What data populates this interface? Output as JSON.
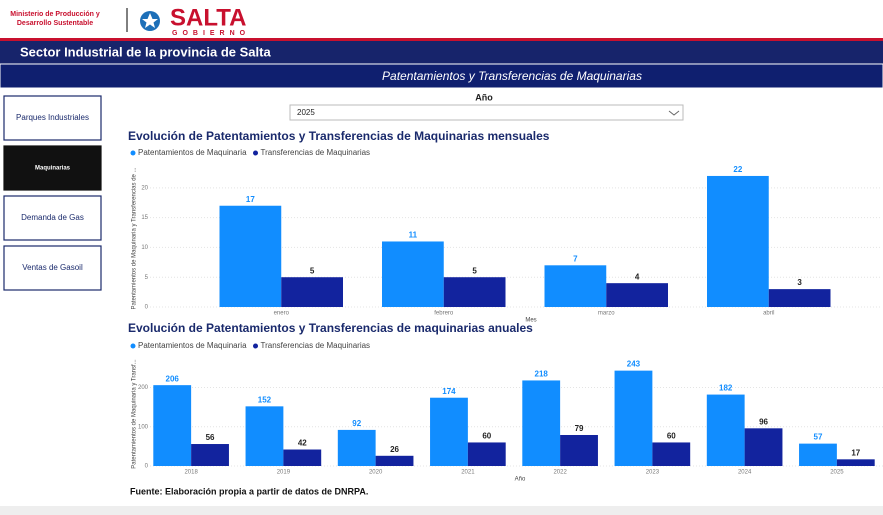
{
  "header": {
    "ministry": [
      "Ministerio de Producción y",
      "Desarrollo Sustentable"
    ],
    "logo": "SALTA",
    "logo_sub": "GOBIERNO",
    "title": "Sector Industrial de la provincia de Salta",
    "subtitle": "Patentamientos y Transferencias de Maquinarias"
  },
  "nav": [
    "Parques Industriales",
    "Maquinarias",
    "Demanda de Gas",
    "Ventas de Gasoil"
  ],
  "filter": {
    "label": "Año",
    "value": "2025"
  },
  "chart_data": [
    {
      "type": "bar",
      "title": "Evolución de Patentamientos y Transferencias de Maquinarias mensuales",
      "xlabel": "Mes",
      "ylabel": "Patentamientos de Maquinaria y Transferencias de ...",
      "categories": [
        "enero",
        "febrero",
        "marzo",
        "abril"
      ],
      "series": [
        {
          "name": "Patentamientos de Maquinaria",
          "color": "#118dff",
          "values": [
            17,
            11,
            7,
            22
          ]
        },
        {
          "name": "Transferencias de Maquinarias",
          "color": "#12239e",
          "values": [
            5,
            5,
            4,
            3
          ]
        }
      ],
      "ylim": [
        0,
        23
      ],
      "yticks": [
        0,
        5,
        10,
        15,
        20
      ],
      "grid": true,
      "legend": "top-left"
    },
    {
      "type": "bar",
      "title": "Evolución de Patentamientos y Transferencias de maquinarias anuales",
      "xlabel": "Año",
      "ylabel": "Patentamientos de Maquinaria y Transf...",
      "categories": [
        "2018",
        "2019",
        "2020",
        "2021",
        "2022",
        "2023",
        "2024",
        "2025"
      ],
      "series": [
        {
          "name": "Patentamientos de Maquinaria",
          "color": "#118dff",
          "values": [
            206,
            152,
            92,
            174,
            218,
            243,
            182,
            57
          ]
        },
        {
          "name": "Transferencias de Maquinarias",
          "color": "#12239e",
          "values": [
            56,
            42,
            26,
            60,
            79,
            60,
            96,
            17
          ]
        }
      ],
      "ylim": [
        0,
        265
      ],
      "yticks": [
        0,
        100,
        200
      ],
      "grid": true,
      "legend": "top-left"
    }
  ],
  "footer": "Fuente: Elaboración propia a partir de datos de DNRPA."
}
